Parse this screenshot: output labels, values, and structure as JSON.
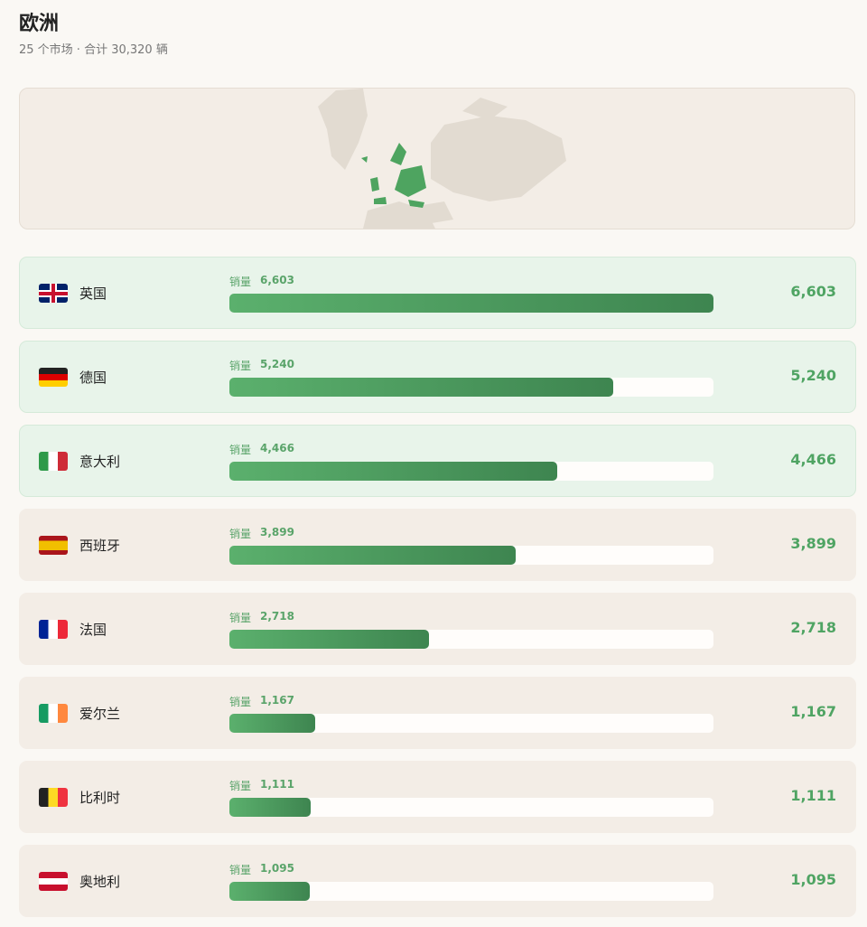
{
  "header": {
    "title": "欧洲",
    "subtitle": "25 个市场 · 合计 30,320 辆"
  },
  "metric_label": "销量",
  "rows": [
    {
      "name": "英国",
      "value": 6603,
      "value_label": "6,603"
    },
    {
      "name": "德国",
      "value": 5240,
      "value_label": "5,240"
    },
    {
      "name": "意大利",
      "value": 4466,
      "value_label": "4,466"
    },
    {
      "name": "西班牙",
      "value": 3899,
      "value_label": "3,899"
    },
    {
      "name": "法国",
      "value": 2718,
      "value_label": "2,718"
    },
    {
      "name": "爱尔兰",
      "value": 1167,
      "value_label": "1,167"
    },
    {
      "name": "比利时",
      "value": 1111,
      "value_label": "1,111"
    },
    {
      "name": "奥地利",
      "value": 1095,
      "value_label": "1,095"
    }
  ]
}
